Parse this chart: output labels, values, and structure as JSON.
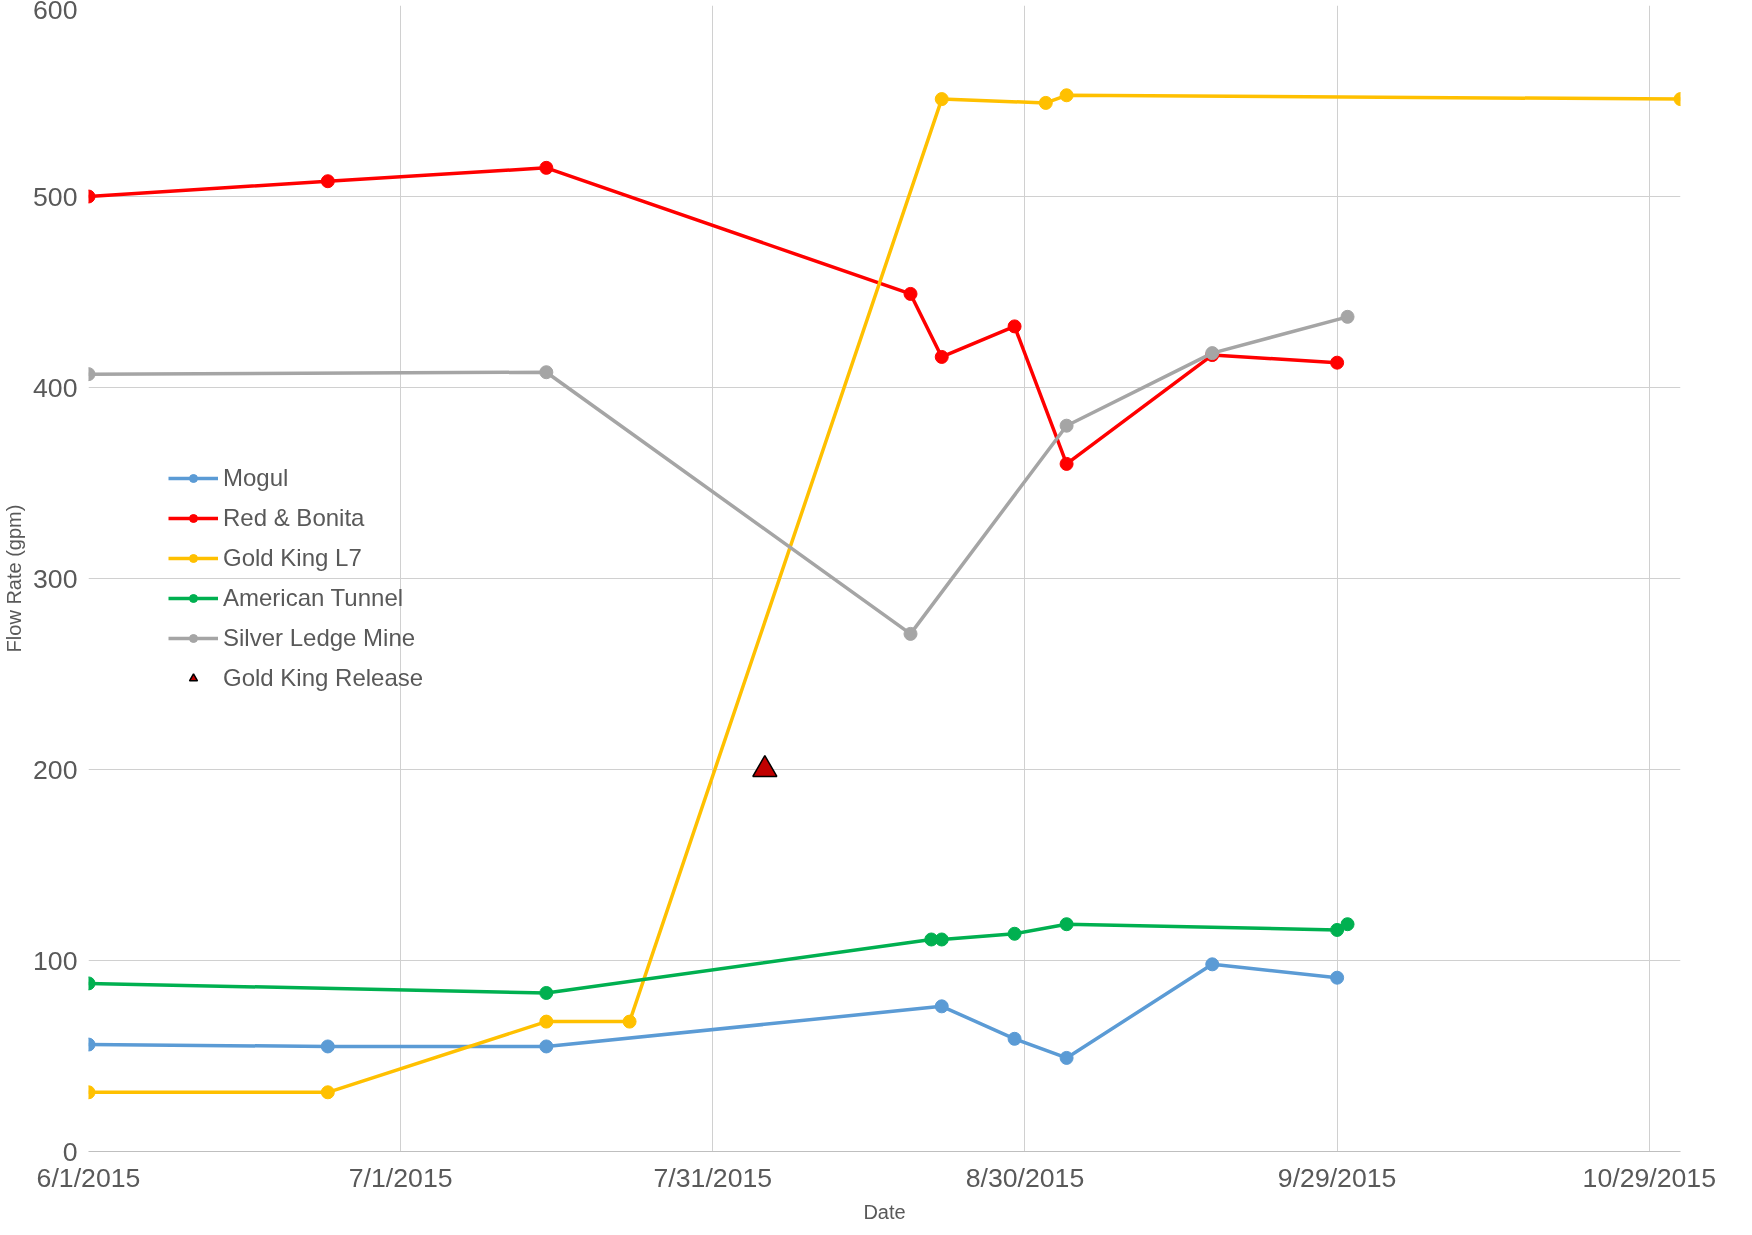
{
  "chart_data": {
    "type": "line",
    "xlabel": "Date",
    "ylabel": "Flow Rate (gpm)",
    "xlim": [
      "2015-06-01",
      "2015-11-01"
    ],
    "ylim": [
      0,
      600
    ],
    "xticks": [
      {
        "value": "2015-06-01",
        "label": "6/1/2015"
      },
      {
        "value": "2015-07-01",
        "label": "7/1/2015"
      },
      {
        "value": "2015-07-31",
        "label": "7/31/2015"
      },
      {
        "value": "2015-08-30",
        "label": "8/30/2015"
      },
      {
        "value": "2015-09-29",
        "label": "9/29/2015"
      },
      {
        "value": "2015-10-29",
        "label": "10/29/2015"
      }
    ],
    "yticks": [
      0,
      100,
      200,
      300,
      400,
      500,
      600
    ],
    "grid": true,
    "legend": "left",
    "marker": "circle",
    "line_style": "solid",
    "series": [
      {
        "name": "Mogul",
        "color": "#5b9bd5",
        "x": [
          "2015-06-01",
          "2015-06-24",
          "2015-07-15",
          "2015-08-22",
          "2015-08-29",
          "2015-09-03",
          "2015-09-17",
          "2015-09-29"
        ],
        "values": [
          56,
          55,
          55,
          76,
          59,
          49,
          98,
          91
        ]
      },
      {
        "name": "Red & Bonita",
        "color": "#ff0000",
        "x": [
          "2015-06-01",
          "2015-06-24",
          "2015-07-15",
          "2015-08-19",
          "2015-08-22",
          "2015-08-29",
          "2015-09-03",
          "2015-09-17",
          "2015-09-29"
        ],
        "values": [
          500,
          508,
          515,
          449,
          416,
          432,
          360,
          417,
          413
        ]
      },
      {
        "name": "Gold King L7",
        "color": "#ffc000",
        "x": [
          "2015-06-01",
          "2015-06-24",
          "2015-07-15",
          "2015-07-23",
          "2015-08-22",
          "2015-09-01",
          "2015-09-03",
          "2015-11-01"
        ],
        "values": [
          31,
          31,
          68,
          68,
          551,
          549,
          553,
          551
        ]
      },
      {
        "name": "American Tunnel",
        "color": "#00b050",
        "x": [
          "2015-06-01",
          "2015-07-15",
          "2015-08-21",
          "2015-08-22",
          "2015-08-29",
          "2015-09-03",
          "2015-09-29",
          "2015-09-30"
        ],
        "values": [
          88,
          83,
          111,
          111,
          114,
          119,
          116,
          119
        ]
      },
      {
        "name": "Silver Ledge Mine",
        "color": "#a5a5a5",
        "x": [
          "2015-06-01",
          "2015-07-15",
          "2015-08-19",
          "2015-09-03",
          "2015-09-17",
          "2015-09-30"
        ],
        "values": [
          407,
          408,
          271,
          380,
          418,
          437
        ]
      },
      {
        "name": "Gold King Release",
        "type": "scatter",
        "marker": "triangle",
        "color": "#c00000",
        "x": [
          "2015-08-05"
        ],
        "values": [
          200
        ]
      }
    ]
  }
}
